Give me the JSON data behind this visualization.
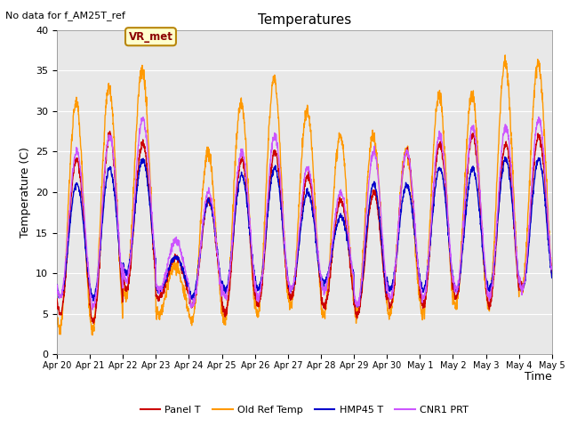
{
  "title": "Temperatures",
  "xlabel": "Time",
  "ylabel": "Temperature (C)",
  "top_left_text": "No data for f_AM25T_ref",
  "annotation_text": "VR_met",
  "ylim": [
    0,
    40
  ],
  "yticks": [
    0,
    5,
    10,
    15,
    20,
    25,
    30,
    35,
    40
  ],
  "xtick_labels": [
    "Apr 20",
    "Apr 21",
    "Apr 22",
    "Apr 23",
    "Apr 24",
    "Apr 25",
    "Apr 26",
    "Apr 27",
    "Apr 28",
    "Apr 29",
    "Apr 30",
    "May 1",
    "May 2",
    "May 3",
    "May 4",
    "May 5"
  ],
  "colors": {
    "panel_t": "#cc0000",
    "old_ref_temp": "#ff9900",
    "hmp45_t": "#0000cc",
    "cnr1_prt": "#cc55ff"
  },
  "legend_labels": [
    "Panel T",
    "Old Ref Temp",
    "HMP45 T",
    "CNR1 PRT"
  ],
  "background_color": "#e8e8e8",
  "figure_background": "#ffffff",
  "num_days": 15,
  "points_per_day": 144,
  "old_ref_peaks": [
    31,
    33,
    35,
    11,
    25,
    31,
    34,
    30,
    27,
    27,
    25,
    32,
    32,
    36,
    36
  ],
  "old_ref_mins": [
    3,
    3,
    7,
    5,
    4,
    4,
    5,
    6,
    5,
    5,
    5,
    5,
    6,
    6,
    8
  ],
  "panel_peaks": [
    24,
    27,
    26,
    12,
    19,
    24,
    25,
    22,
    19,
    20,
    25,
    26,
    27,
    26,
    27
  ],
  "panel_mins": [
    5,
    4,
    8,
    7,
    6,
    5,
    6,
    7,
    6,
    5,
    6,
    6,
    7,
    6,
    8
  ],
  "hmp45_peaks": [
    21,
    23,
    24,
    12,
    19,
    22,
    23,
    20,
    17,
    21,
    21,
    23,
    23,
    24,
    24
  ],
  "hmp45_mins": [
    7,
    7,
    10,
    8,
    7,
    8,
    8,
    8,
    9,
    6,
    8,
    8,
    8,
    8,
    8
  ],
  "cnr1_peaks": [
    25,
    27,
    29,
    14,
    20,
    25,
    27,
    23,
    20,
    25,
    25,
    27,
    28,
    28,
    29
  ],
  "cnr1_mins": [
    7,
    6,
    9,
    8,
    6,
    7,
    7,
    8,
    8,
    6,
    7,
    7,
    8,
    7,
    8
  ]
}
